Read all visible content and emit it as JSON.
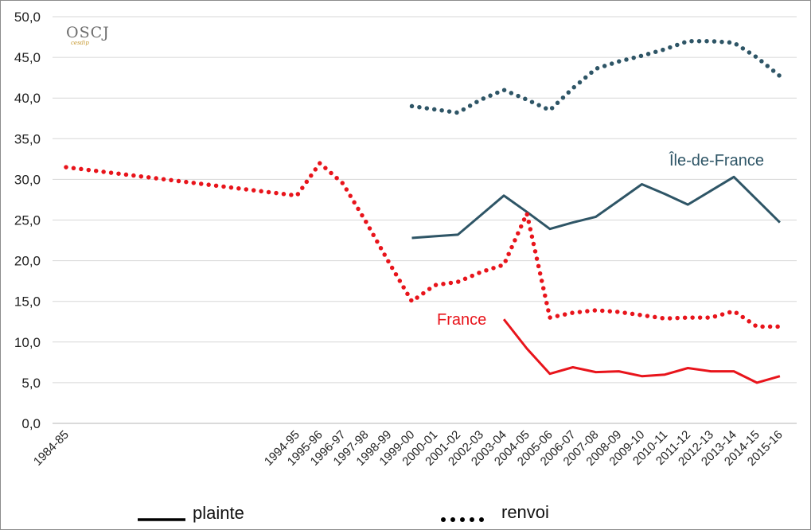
{
  "chart_data": {
    "type": "line",
    "title": "",
    "xlabel": "",
    "ylabel": "",
    "ylim": [
      0,
      50
    ],
    "y_ticks": [
      "0,0",
      "5,0",
      "10,0",
      "15,0",
      "20,0",
      "25,0",
      "30,0",
      "35,0",
      "40,0",
      "45,0",
      "50,0"
    ],
    "categories": [
      "1984-85",
      "1994-95",
      "1995-96",
      "1996-97",
      "1997-98",
      "1998-99",
      "1999-00",
      "2000-01",
      "2001-02",
      "2002-03",
      "2003-04",
      "2004-05",
      "2005-06",
      "2006-07",
      "2007-08",
      "2008-09",
      "2009-10",
      "2010-11",
      "2011-12",
      "2012-13",
      "2013-14",
      "2014-15",
      "2015-16"
    ],
    "grid": true,
    "series": [
      {
        "name": "Île-de-France",
        "style": "solid",
        "color": "#2e5566",
        "values": [
          null,
          null,
          null,
          null,
          null,
          null,
          22.8,
          23.0,
          23.2,
          25.6,
          28.0,
          26.0,
          23.9,
          24.7,
          25.4,
          27.4,
          29.4,
          28.2,
          26.9,
          28.6,
          30.3,
          27.5,
          24.7
        ]
      },
      {
        "name": "Île-de-France",
        "style": "dotted",
        "color": "#2e5566",
        "values": [
          null,
          null,
          null,
          null,
          null,
          null,
          39.0,
          38.6,
          38.2,
          39.8,
          41.0,
          39.8,
          38.5,
          41.2,
          43.6,
          44.5,
          45.2,
          46.0,
          47.0,
          47.0,
          46.8,
          45.0,
          42.7
        ]
      },
      {
        "name": "France",
        "style": "solid",
        "color": "#e8141b",
        "values": [
          null,
          null,
          null,
          null,
          null,
          null,
          null,
          null,
          null,
          null,
          12.8,
          9.2,
          6.1,
          6.9,
          6.3,
          6.4,
          5.8,
          6.0,
          6.8,
          6.4,
          6.4,
          5.0,
          5.8
        ]
      },
      {
        "name": "France",
        "style": "dotted",
        "color": "#e8141b",
        "values": [
          31.5,
          28.0,
          32.0,
          29.5,
          24.8,
          19.8,
          15.0,
          17.0,
          17.4,
          18.6,
          19.5,
          25.8,
          13.0,
          13.6,
          13.9,
          13.7,
          13.3,
          12.9,
          13.0,
          13.0,
          13.8,
          11.9,
          11.9
        ]
      }
    ],
    "annotations": [
      "Île-de-France",
      "France"
    ],
    "legend": {
      "position": "bottom",
      "items": [
        {
          "label": "plainte",
          "style": "solid"
        },
        {
          "label": "renvoi",
          "style": "dotted"
        }
      ]
    }
  },
  "logo": {
    "text": "OSCJ",
    "subtext": "cesdip"
  }
}
